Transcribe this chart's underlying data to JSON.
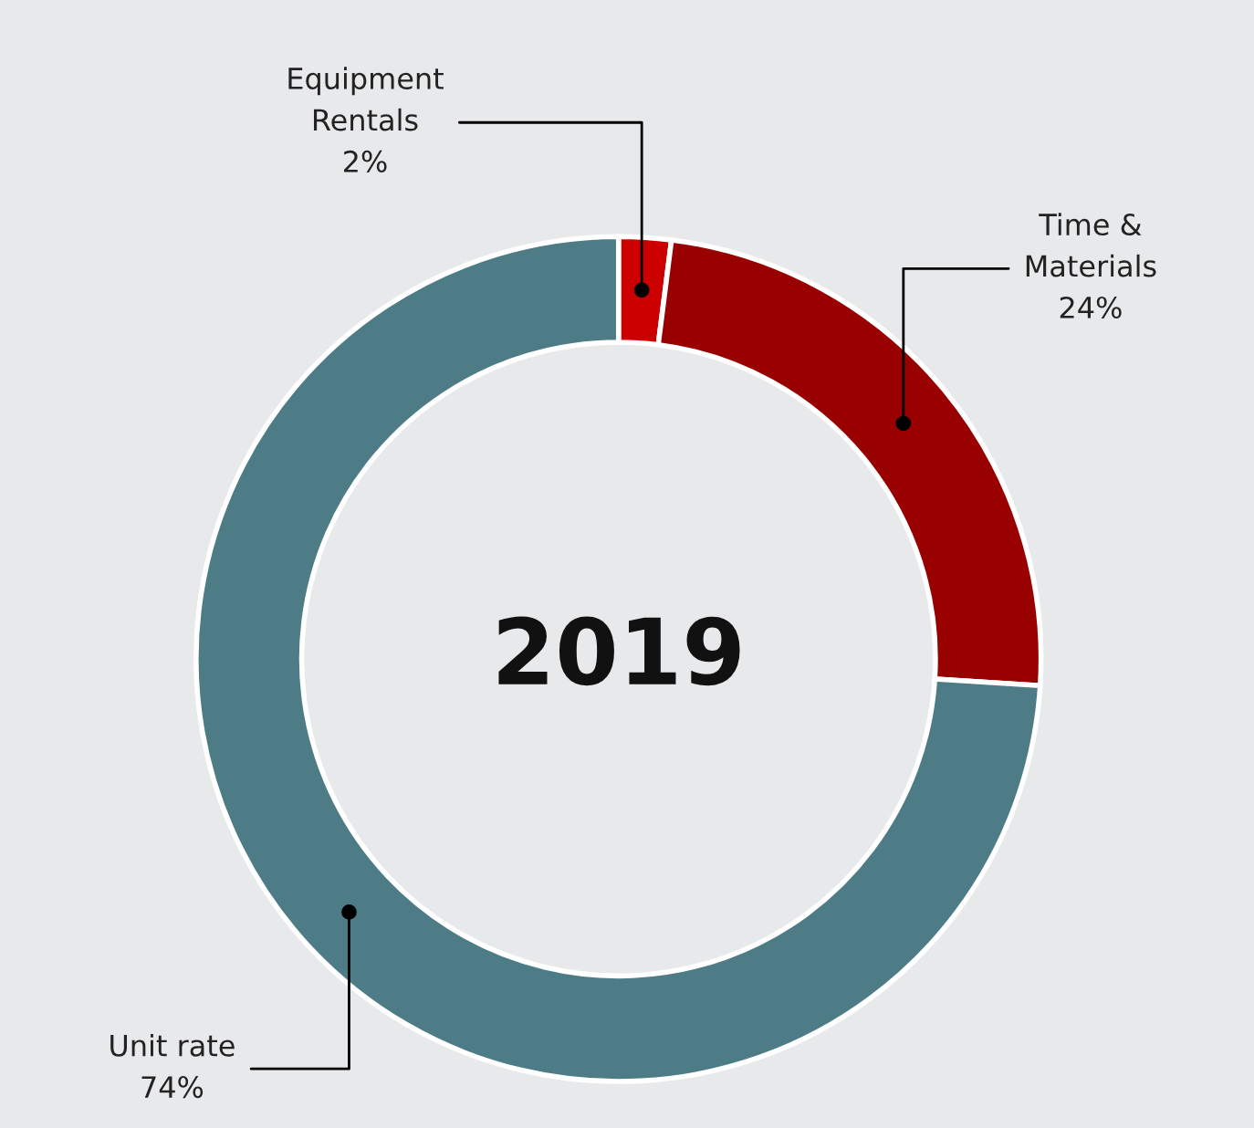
{
  "chart_data": {
    "type": "donut",
    "title": "2019",
    "categories": [
      "Equipment\nRentals",
      "Time &\nMaterials",
      "Unit rate"
    ],
    "values": [
      2,
      24,
      74
    ],
    "colors": [
      "#cc0000",
      "#990000",
      "#4d7c87"
    ],
    "value_labels": [
      "2%",
      "24%",
      "74%"
    ]
  }
}
